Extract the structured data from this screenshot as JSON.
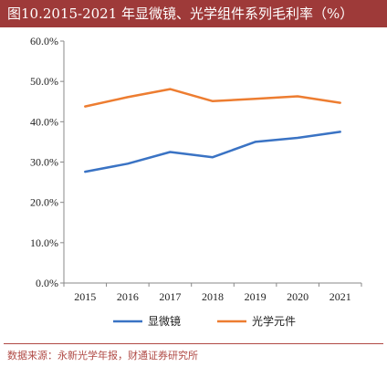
{
  "title": "图10.2015-2021 年显微镜、光学组件系列毛利率（%）",
  "source": "数据来源：永新光学年报，财通证券研究所",
  "chart_data": {
    "type": "line",
    "title": "",
    "xlabel": "",
    "ylabel": "",
    "categories": [
      "2015",
      "2016",
      "2017",
      "2018",
      "2019",
      "2020",
      "2021"
    ],
    "ylim": [
      0,
      60
    ],
    "yticks": [
      "0.0%",
      "10.0%",
      "20.0%",
      "30.0%",
      "40.0%",
      "50.0%",
      "60.0%"
    ],
    "ytick_values": [
      0,
      10,
      20,
      30,
      40,
      50,
      60
    ],
    "grid": false,
    "legend_position": "bottom",
    "series": [
      {
        "name": "显微镜",
        "color": "#3a73c4",
        "values": [
          27.6,
          29.6,
          32.5,
          31.2,
          35.0,
          36.0,
          37.5
        ]
      },
      {
        "name": "光学元件",
        "color": "#ed7d31",
        "values": [
          43.8,
          46.1,
          48.1,
          45.1,
          45.7,
          46.3,
          44.7
        ]
      }
    ]
  }
}
